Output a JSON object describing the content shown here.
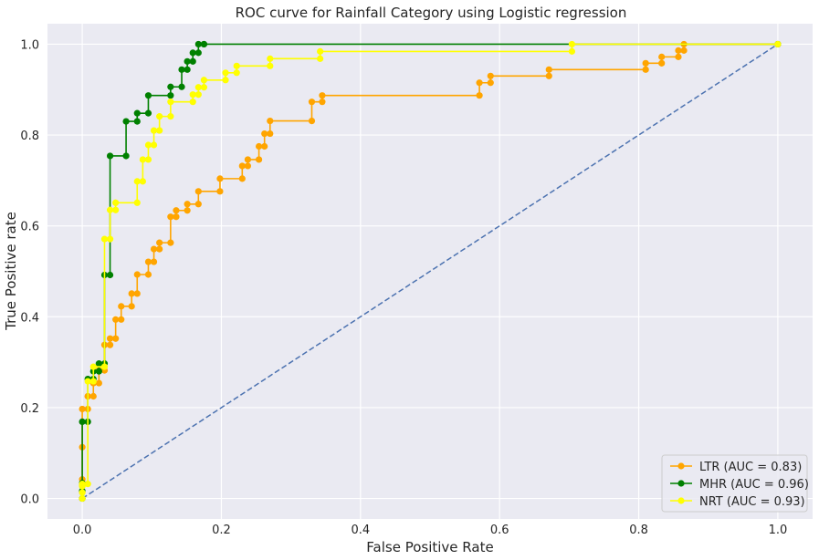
{
  "chart_data": {
    "type": "line",
    "title": "ROC curve for Rainfall Category using Logistic regression",
    "xlabel": "False Positive Rate",
    "ylabel": "True Positive rate",
    "xlim": [
      -0.05,
      1.05
    ],
    "ylim": [
      -0.045,
      1.045
    ],
    "xticks": [
      0.0,
      0.2,
      0.4,
      0.6,
      0.8,
      1.0
    ],
    "yticks": [
      0.0,
      0.2,
      0.4,
      0.6,
      0.8,
      1.0
    ],
    "tick_labels_x": [
      "0.0",
      "0.2",
      "0.4",
      "0.6",
      "0.8",
      "1.0"
    ],
    "tick_labels_y": [
      "0.0",
      "0.2",
      "0.4",
      "0.6",
      "0.8",
      "1.0"
    ],
    "grid": true,
    "legend_position": "lower-right",
    "background": "#eaeaf2",
    "series": [
      {
        "name": "LTR (AUC = 0.83)",
        "color": "#ffa500",
        "x": [
          0.0,
          0.0,
          0.0,
          0.0,
          0.0,
          0.0,
          0.008,
          0.008,
          0.008,
          0.016,
          0.016,
          0.024,
          0.024,
          0.032,
          0.032,
          0.04,
          0.04,
          0.048,
          0.048,
          0.056,
          0.056,
          0.071,
          0.071,
          0.079,
          0.079,
          0.095,
          0.095,
          0.103,
          0.103,
          0.111,
          0.111,
          0.127,
          0.127,
          0.135,
          0.135,
          0.151,
          0.151,
          0.167,
          0.167,
          0.198,
          0.198,
          0.23,
          0.23,
          0.238,
          0.238,
          0.254,
          0.254,
          0.262,
          0.262,
          0.27,
          0.27,
          0.33,
          0.33,
          0.345,
          0.345,
          0.571,
          0.571,
          0.587,
          0.587,
          0.671,
          0.671,
          0.81,
          0.81,
          0.833,
          0.833,
          0.857,
          0.857,
          0.865,
          0.865,
          1.0
        ],
        "y": [
          0.0,
          0.014,
          0.028,
          0.042,
          0.113,
          0.197,
          0.197,
          0.225,
          0.225,
          0.225,
          0.254,
          0.254,
          0.282,
          0.282,
          0.338,
          0.338,
          0.352,
          0.352,
          0.394,
          0.394,
          0.423,
          0.423,
          0.451,
          0.451,
          0.493,
          0.493,
          0.521,
          0.521,
          0.549,
          0.549,
          0.563,
          0.563,
          0.62,
          0.62,
          0.634,
          0.634,
          0.648,
          0.648,
          0.676,
          0.676,
          0.704,
          0.704,
          0.732,
          0.732,
          0.746,
          0.746,
          0.775,
          0.775,
          0.803,
          0.803,
          0.831,
          0.831,
          0.873,
          0.873,
          0.887,
          0.887,
          0.915,
          0.915,
          0.93,
          0.93,
          0.944,
          0.944,
          0.958,
          0.958,
          0.972,
          0.972,
          0.986,
          0.986,
          1.0,
          1.0
        ]
      },
      {
        "name": "MHR (AUC = 0.96)",
        "color": "#008000",
        "x": [
          0.0,
          0.0,
          0.0,
          0.0,
          0.008,
          0.008,
          0.016,
          0.016,
          0.024,
          0.024,
          0.032,
          0.032,
          0.04,
          0.04,
          0.063,
          0.063,
          0.079,
          0.079,
          0.095,
          0.095,
          0.127,
          0.127,
          0.143,
          0.143,
          0.151,
          0.151,
          0.159,
          0.159,
          0.167,
          0.167,
          0.175,
          0.175,
          1.0
        ],
        "y": [
          0.0,
          0.017,
          0.034,
          0.169,
          0.169,
          0.263,
          0.263,
          0.28,
          0.28,
          0.297,
          0.297,
          0.492,
          0.492,
          0.754,
          0.754,
          0.83,
          0.83,
          0.848,
          0.848,
          0.887,
          0.887,
          0.906,
          0.906,
          0.944,
          0.944,
          0.962,
          0.962,
          0.981,
          0.981,
          1.0,
          1.0,
          1.0,
          1.0
        ]
      },
      {
        "name": "NRT (AUC = 0.93)",
        "color": "#ffff00",
        "x": [
          0.0,
          0.0,
          0.0,
          0.0,
          0.008,
          0.008,
          0.016,
          0.016,
          0.032,
          0.032,
          0.04,
          0.04,
          0.048,
          0.048,
          0.079,
          0.079,
          0.087,
          0.087,
          0.095,
          0.095,
          0.103,
          0.103,
          0.111,
          0.111,
          0.127,
          0.127,
          0.159,
          0.159,
          0.167,
          0.167,
          0.175,
          0.175,
          0.206,
          0.206,
          0.222,
          0.222,
          0.27,
          0.27,
          0.342,
          0.342,
          0.704,
          0.704,
          1.0
        ],
        "y": [
          0.0,
          0.013,
          0.027,
          0.032,
          0.032,
          0.258,
          0.258,
          0.29,
          0.29,
          0.571,
          0.571,
          0.635,
          0.635,
          0.651,
          0.651,
          0.698,
          0.698,
          0.746,
          0.746,
          0.778,
          0.778,
          0.81,
          0.81,
          0.841,
          0.841,
          0.873,
          0.873,
          0.889,
          0.889,
          0.905,
          0.905,
          0.921,
          0.921,
          0.937,
          0.937,
          0.952,
          0.952,
          0.968,
          0.968,
          0.984,
          0.984,
          1.0,
          1.0
        ]
      }
    ],
    "reference_line": {
      "color": "#4c72b0",
      "style": "dashed",
      "x": [
        0.0,
        1.0
      ],
      "y": [
        0.0,
        1.0
      ]
    }
  }
}
